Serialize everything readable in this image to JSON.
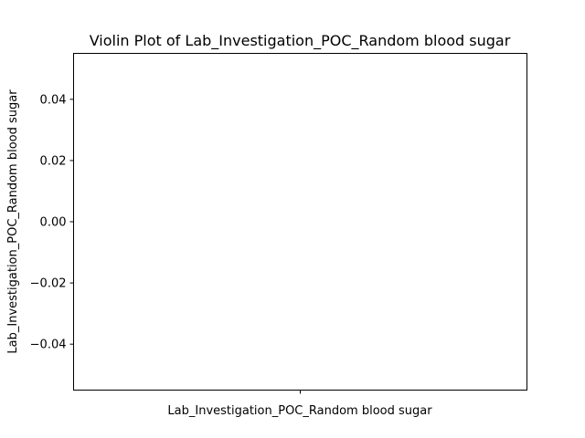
{
  "chart_data": {
    "type": "violin",
    "title": "Violin Plot of Lab_Investigation_POC_Random blood sugar",
    "xlabel": "Lab_Investigation_POC_Random blood sugar",
    "ylabel": "Lab_Investigation_POC_Random blood sugar",
    "ylim": [
      -0.055,
      0.055
    ],
    "y_ticks": [
      0.04,
      0.02,
      0.0,
      -0.02,
      -0.04
    ],
    "y_tick_labels": [
      "0.04",
      "0.02",
      "0.00",
      "−0.02",
      "−0.04"
    ],
    "categories": [
      ""
    ],
    "values": [],
    "grid": false,
    "legend": "none"
  }
}
